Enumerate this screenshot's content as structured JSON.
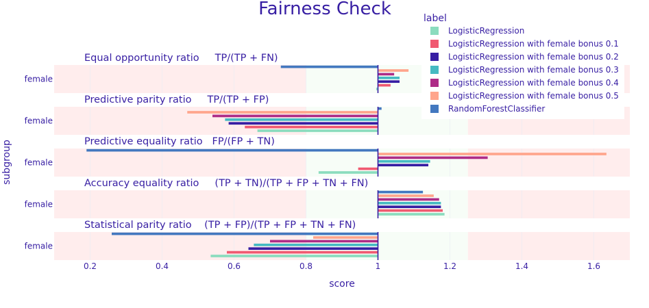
{
  "chart_data": {
    "type": "bar",
    "orientation": "horizontal",
    "title": "Fairness Check",
    "xlabel": "score",
    "ylabel": "subgroup",
    "xlim": [
      0.1,
      1.7
    ],
    "xticks": [
      0.2,
      0.4,
      0.6,
      0.8,
      1,
      1.2,
      1.4,
      1.6
    ],
    "baseline": 1,
    "fair_range": [
      0.8,
      1.25
    ],
    "legend": {
      "title": "label",
      "placement": "top-right",
      "entries": [
        {
          "name": "LogisticRegression",
          "color": "#8bdcbe"
        },
        {
          "name": "LogisticRegression with female bonus 0.1",
          "color": "#f05a71"
        },
        {
          "name": "LogisticRegression with female bonus 0.2",
          "color": "#371ea3"
        },
        {
          "name": "LogisticRegression with female bonus 0.3",
          "color": "#46bac2"
        },
        {
          "name": "LogisticRegression with female bonus 0.4",
          "color": "#ae2c87"
        },
        {
          "name": "LogisticRegression with female bonus 0.5",
          "color": "#ffa58c"
        },
        {
          "name": "RandomForestClassifier",
          "color": "#4378bf"
        }
      ]
    },
    "panels": [
      {
        "title": "Equal opportunity ratio     TP/(TP + FN)",
        "category": "female",
        "values": [
          0.995,
          1.035,
          1.06,
          1.06,
          1.045,
          1.085,
          0.73
        ]
      },
      {
        "title": "Predictive parity ratio     TP/(TP + FP)",
        "category": "female",
        "values": [
          0.665,
          0.63,
          0.585,
          0.575,
          0.54,
          0.47,
          1.01
        ]
      },
      {
        "title": "Predictive equality ratio   FP/(FP + TN)",
        "category": "female",
        "values": [
          0.835,
          0.945,
          1.14,
          1.145,
          1.305,
          1.635,
          0.19
        ]
      },
      {
        "title": "Accuracy equality ratio     (TP + TN)/(TP + FP + TN + FN)",
        "category": "female",
        "values": [
          1.185,
          1.18,
          1.175,
          1.175,
          1.17,
          1.155,
          1.125
        ]
      },
      {
        "title": "Statistical parity ratio    (TP + FP)/(TP + FP + TN + FN)",
        "category": "female",
        "values": [
          0.535,
          0.58,
          0.64,
          0.655,
          0.7,
          0.82,
          0.26
        ]
      }
    ]
  }
}
